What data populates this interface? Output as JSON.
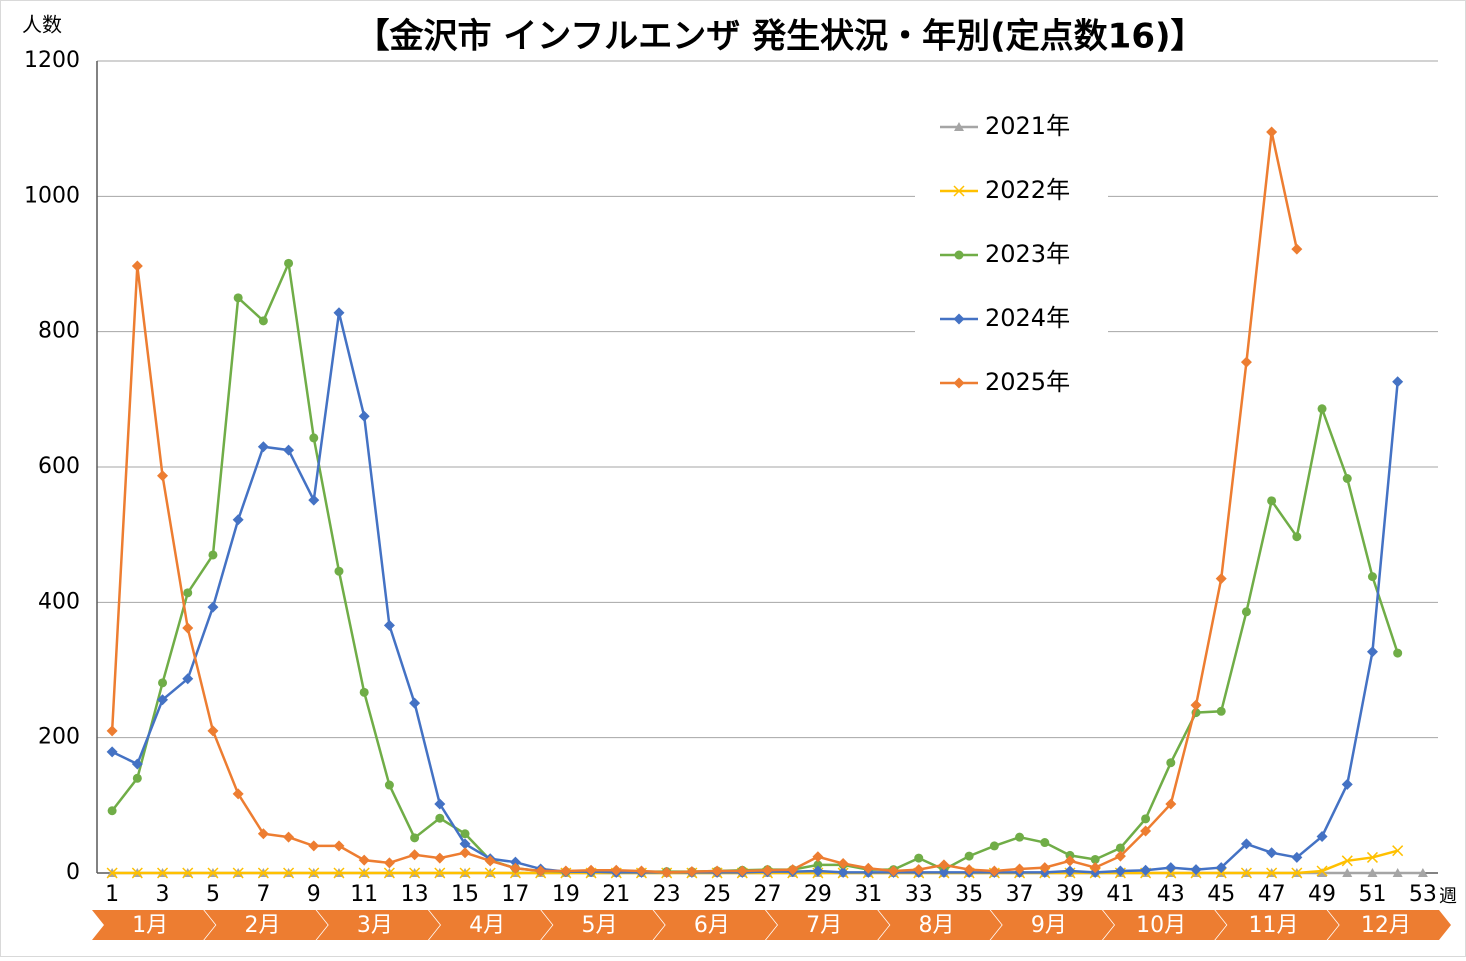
{
  "chart_data": {
    "type": "line",
    "title": "【金沢市  インフルエンザ  発生状況・年別(定点数16)】",
    "y_label": "人数",
    "x_label": "週",
    "x": [
      1,
      2,
      3,
      4,
      5,
      6,
      7,
      8,
      9,
      10,
      11,
      12,
      13,
      14,
      15,
      16,
      17,
      18,
      19,
      20,
      21,
      22,
      23,
      24,
      25,
      26,
      27,
      28,
      29,
      30,
      31,
      32,
      33,
      34,
      35,
      36,
      37,
      38,
      39,
      40,
      41,
      42,
      43,
      44,
      45,
      46,
      47,
      48,
      49,
      50,
      51,
      52,
      53
    ],
    "xlim": [
      0.4,
      53.6
    ],
    "xticks": [
      1,
      3,
      5,
      7,
      9,
      11,
      13,
      15,
      17,
      19,
      21,
      23,
      25,
      27,
      29,
      31,
      33,
      35,
      37,
      39,
      41,
      43,
      45,
      47,
      49,
      51,
      53
    ],
    "ylim": [
      0,
      1200
    ],
    "yticks": [
      0,
      200,
      400,
      600,
      800,
      1000,
      1200
    ],
    "grid": true,
    "months": [
      "1月",
      "2月",
      "3月",
      "4月",
      "5月",
      "6月",
      "7月",
      "8月",
      "9月",
      "10月",
      "11月",
      "12月"
    ],
    "month_color": "#ed7d31",
    "series": [
      {
        "name": "2021年",
        "color": "#a5a5a5",
        "marker": "triangle",
        "values": [
          0,
          0,
          0,
          0,
          0,
          0,
          0,
          0,
          0,
          0,
          0,
          0,
          0,
          0,
          0,
          0,
          0,
          0,
          0,
          0,
          0,
          0,
          0,
          0,
          0,
          0,
          0,
          0,
          0,
          0,
          0,
          0,
          0,
          0,
          0,
          0,
          0,
          0,
          0,
          0,
          0,
          0,
          0,
          0,
          0,
          0,
          0,
          0,
          0,
          0,
          0,
          0,
          0
        ]
      },
      {
        "name": "2022年",
        "color": "#ffc000",
        "marker": "cross",
        "values": [
          0,
          0,
          0,
          0,
          0,
          0,
          0,
          0,
          0,
          0,
          0,
          0,
          0,
          0,
          0,
          0,
          0,
          0,
          0,
          0,
          0,
          0,
          0,
          0,
          0,
          0,
          0,
          0,
          0,
          0,
          0,
          0,
          0,
          0,
          0,
          0,
          0,
          0,
          0,
          0,
          0,
          0,
          0,
          0,
          0,
          0,
          0,
          0,
          3,
          18,
          23,
          33,
          null
        ]
      },
      {
        "name": "2023年",
        "color": "#70ad47",
        "marker": "circle",
        "values": [
          92,
          140,
          281,
          414,
          470,
          850,
          816,
          901,
          643,
          446,
          267,
          130,
          52,
          81,
          58,
          19,
          7,
          3,
          2,
          2,
          2,
          2,
          2,
          2,
          3,
          4,
          5,
          5,
          12,
          12,
          5,
          5,
          22,
          5,
          25,
          40,
          53,
          45,
          26,
          20,
          37,
          80,
          163,
          237,
          239,
          386,
          550,
          497,
          686,
          583,
          438,
          325,
          null
        ]
      },
      {
        "name": "2024年",
        "color": "#4472c4",
        "marker": "diamond",
        "values": [
          179,
          161,
          256,
          287,
          393,
          522,
          630,
          625,
          551,
          828,
          675,
          366,
          251,
          102,
          43,
          21,
          16,
          6,
          2,
          2,
          1,
          1,
          1,
          1,
          1,
          1,
          2,
          2,
          3,
          1,
          1,
          1,
          1,
          1,
          1,
          1,
          1,
          1,
          3,
          1,
          3,
          4,
          8,
          5,
          8,
          43,
          30,
          23,
          54,
          131,
          327,
          726,
          null
        ]
      },
      {
        "name": "2025年",
        "color": "#ed7d31",
        "marker": "diamond",
        "values": [
          210,
          897,
          587,
          362,
          210,
          117,
          58,
          53,
          40,
          40,
          19,
          15,
          27,
          22,
          30,
          18,
          7,
          3,
          3,
          4,
          4,
          3,
          1,
          2,
          3,
          3,
          4,
          5,
          24,
          14,
          7,
          3,
          5,
          12,
          5,
          3,
          6,
          8,
          18,
          8,
          25,
          62,
          102,
          248,
          435,
          755,
          1095,
          922,
          null,
          null,
          null,
          null,
          null
        ]
      }
    ]
  }
}
